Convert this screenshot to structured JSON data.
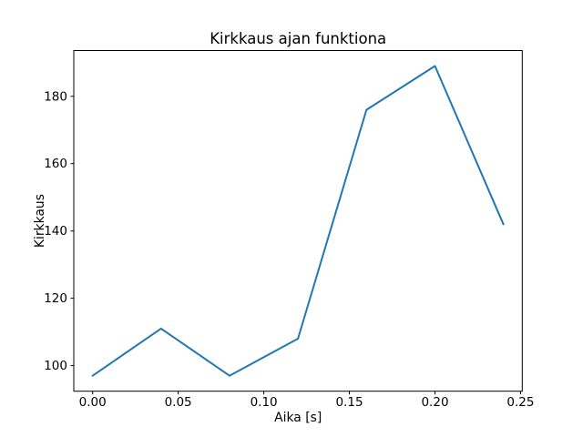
{
  "figure": {
    "background": "#ffffff",
    "title": "Kirkkaus ajan funktiona",
    "xlabel": "Aika [s]",
    "ylabel": "Kirkkaus",
    "line_color": "#1f77b4",
    "axis_color": "#000000",
    "x_tick_labels": [
      "0.00",
      "0.05",
      "0.10",
      "0.15",
      "0.20",
      "0.25"
    ],
    "y_tick_labels": [
      "100",
      "120",
      "140",
      "160",
      "180"
    ]
  },
  "chart_data": {
    "type": "line",
    "title": "Kirkkaus ajan funktiona",
    "xlabel": "Aika [s]",
    "ylabel": "Kirkkaus",
    "x": [
      0.0,
      0.04,
      0.08,
      0.12,
      0.16,
      0.2,
      0.24
    ],
    "values": [
      97,
      111,
      97,
      108,
      176,
      189,
      142
    ],
    "series_name": "Kirkkaus",
    "xlim": [
      -0.011,
      0.251
    ],
    "ylim": [
      92.4,
      193.6
    ],
    "x_ticks": [
      0.0,
      0.05,
      0.1,
      0.15,
      0.2,
      0.25
    ],
    "y_ticks": [
      100,
      120,
      140,
      160,
      180
    ],
    "grid": false,
    "legend": "none",
    "line_color": "#1f77b4"
  }
}
